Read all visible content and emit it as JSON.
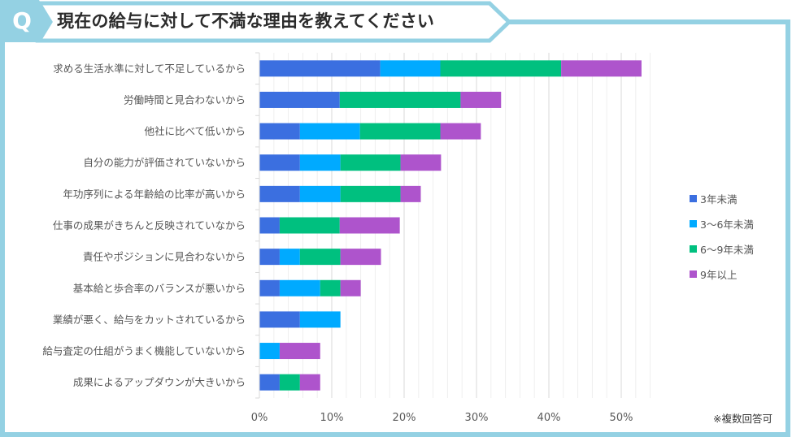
{
  "question": {
    "badge": "Q",
    "title": "現在の給与に対して不満な理由を教えてください"
  },
  "colors": {
    "frame": "#94d1e3",
    "grid_major": "#d9d9d9",
    "grid_minor": "#efefef"
  },
  "note": "※複数回答可",
  "chart_data": {
    "type": "bar",
    "orientation": "horizontal",
    "stacked": true,
    "title": "現在の給与に対して不満な理由を教えてください",
    "xlabel": "",
    "ylabel": "",
    "xlim": [
      0,
      54
    ],
    "x_ticks": [
      0,
      10,
      20,
      30,
      40,
      50
    ],
    "x_tick_labels": [
      "0%",
      "10%",
      "20%",
      "30%",
      "40%",
      "50%"
    ],
    "minor_grid_step": 2,
    "grid": true,
    "legend_position": "right",
    "categories": [
      "求める生活水準に対して不足しているから",
      "労働時間と見合わないから",
      "他社に比べて低いから",
      "自分の能力が評価されていないから",
      "年功序列による年齢給の比率が高いから",
      "仕事の成果がきちんと反映されていなから",
      "責任やポジションに見合わないから",
      "基本給と歩合率のバランスが悪いから",
      "業績が悪く、給与をカットされているから",
      "給与査定の仕組がうまく機能していないから",
      "成果によるアップダウンが大きいから"
    ],
    "series": [
      {
        "name": "3年未満",
        "color": "#3b6fe0",
        "values": [
          16.7,
          11.1,
          5.6,
          5.6,
          5.6,
          2.8,
          2.8,
          2.8,
          5.6,
          0,
          2.8
        ]
      },
      {
        "name": "3〜6年未満",
        "color": "#00aaff",
        "values": [
          8.3,
          0,
          8.3,
          5.6,
          5.6,
          0,
          2.8,
          5.6,
          5.6,
          2.8,
          0
        ]
      },
      {
        "name": "6〜9年未満",
        "color": "#00c07f",
        "values": [
          16.7,
          16.7,
          11.1,
          8.3,
          8.3,
          8.3,
          5.6,
          2.8,
          0,
          0,
          2.8
        ]
      },
      {
        "name": "9年以上",
        "color": "#ae54cc",
        "values": [
          11.1,
          5.6,
          5.6,
          5.6,
          2.8,
          8.3,
          5.6,
          2.8,
          0,
          5.6,
          2.8
        ]
      }
    ]
  }
}
